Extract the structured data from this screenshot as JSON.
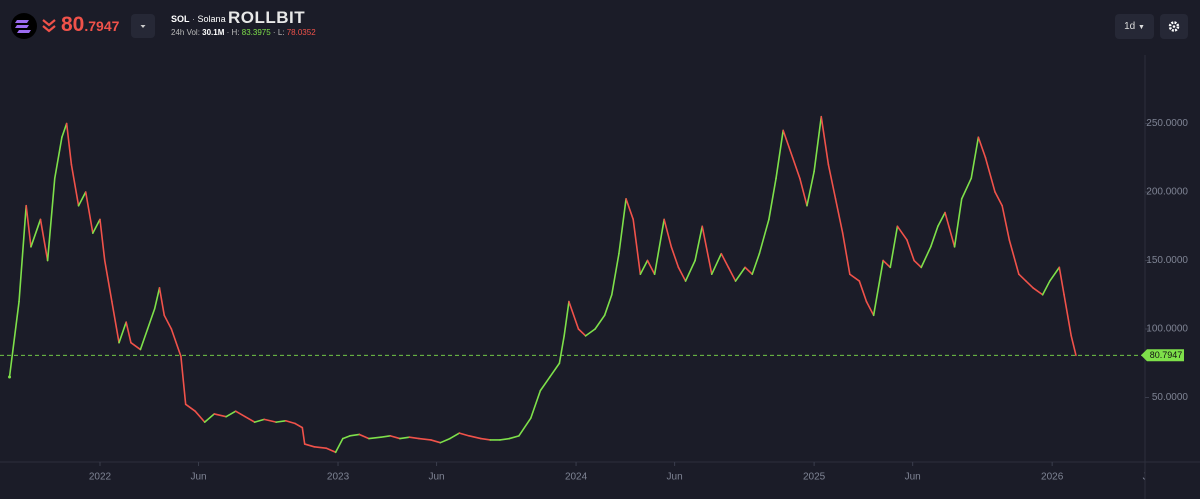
{
  "header": {
    "price_main": "80",
    "price_fraction": ".7947",
    "symbol": "SOL",
    "separator": "·",
    "name": "Solana",
    "brand": "ROLLBIT",
    "vol_label": "24h Vol:",
    "vol": "30.1M",
    "high_label": "H:",
    "high": "83.3975",
    "low_label": "L:",
    "low": "78.0352",
    "timeframe": "1d"
  },
  "chart_data": {
    "type": "line",
    "x": [
      2021.62,
      2021.66,
      2021.69,
      2021.71,
      2021.75,
      2021.78,
      2021.81,
      2021.84,
      2021.86,
      2021.88,
      2021.91,
      2021.94,
      2021.97,
      2022.0,
      2022.02,
      2022.05,
      2022.08,
      2022.11,
      2022.13,
      2022.17,
      2022.2,
      2022.23,
      2022.25,
      2022.27,
      2022.3,
      2022.34,
      2022.36,
      2022.4,
      2022.44,
      2022.48,
      2022.53,
      2022.57,
      2022.61,
      2022.65,
      2022.69,
      2022.74,
      2022.78,
      2022.82,
      2022.85,
      2022.86,
      2022.9,
      2022.95,
      2022.99,
      2023.02,
      2023.05,
      2023.09,
      2023.13,
      2023.18,
      2023.22,
      2023.26,
      2023.3,
      2023.34,
      2023.39,
      2023.43,
      2023.47,
      2023.51,
      2023.55,
      2023.6,
      2023.64,
      2023.68,
      2023.72,
      2023.76,
      2023.81,
      2023.85,
      2023.89,
      2023.93,
      2023.95,
      2023.97,
      2024.01,
      2024.04,
      2024.08,
      2024.12,
      2024.15,
      2024.18,
      2024.21,
      2024.24,
      2024.27,
      2024.3,
      2024.33,
      2024.37,
      2024.4,
      2024.43,
      2024.46,
      2024.5,
      2024.53,
      2024.57,
      2024.61,
      2024.64,
      2024.67,
      2024.71,
      2024.74,
      2024.77,
      2024.81,
      2024.84,
      2024.87,
      2024.91,
      2024.94,
      2024.97,
      2025.0,
      2025.03,
      2025.06,
      2025.09,
      2025.12,
      2025.15,
      2025.19,
      2025.22,
      2025.25,
      2025.29,
      2025.32,
      2025.35,
      2025.39,
      2025.42,
      2025.45,
      2025.49,
      2025.52,
      2025.55,
      2025.59,
      2025.62,
      2025.66,
      2025.69,
      2025.72,
      2025.76,
      2025.79,
      2025.82,
      2025.86,
      2025.89,
      2025.92,
      2025.96,
      2025.99,
      2026.03,
      2026.05,
      2026.08,
      2026.1
    ],
    "values": [
      65,
      120,
      190,
      160,
      180,
      150,
      210,
      240,
      250,
      220,
      190,
      200,
      170,
      180,
      150,
      120,
      90,
      105,
      90,
      85,
      100,
      115,
      130,
      110,
      100,
      80,
      45,
      40,
      32,
      38,
      36,
      40,
      36,
      32,
      34,
      32,
      33,
      31,
      28,
      16,
      14,
      13,
      10,
      20,
      22,
      23,
      20,
      21,
      22,
      20,
      21,
      20,
      19,
      17,
      20,
      24,
      22,
      20,
      19,
      19,
      20,
      22,
      35,
      55,
      65,
      75,
      95,
      120,
      100,
      95,
      100,
      110,
      125,
      155,
      195,
      180,
      140,
      150,
      140,
      180,
      160,
      145,
      135,
      150,
      175,
      140,
      155,
      145,
      135,
      145,
      140,
      155,
      180,
      210,
      245,
      225,
      210,
      190,
      215,
      255,
      220,
      195,
      170,
      140,
      135,
      120,
      110,
      150,
      145,
      175,
      165,
      150,
      145,
      160,
      175,
      185,
      160,
      195,
      210,
      240,
      225,
      200,
      190,
      165,
      140,
      135,
      130,
      125,
      135,
      145,
      125,
      95,
      80.7947
    ],
    "up_color": "#7ee04a",
    "down_color": "#f0524a",
    "current_price": 80.7947,
    "xlim": [
      2021.58,
      2026.39
    ],
    "xticks": [
      2022,
      {
        "value": 2022.414,
        "label": "Jun"
      },
      2023,
      {
        "value": 2023.414,
        "label": "Jun"
      },
      2024,
      {
        "value": 2024.414,
        "label": "Jun"
      },
      2025,
      {
        "value": 2025.414,
        "label": "Jun"
      },
      2026,
      {
        "value": 2026.414,
        "label": "Jun"
      }
    ],
    "ylim": [
      2.9,
      296.4
    ],
    "yticks": [
      {
        "value": 50,
        "label": "50.0000"
      },
      {
        "value": 100,
        "label": "100.0000"
      },
      {
        "value": 150,
        "label": "150.0000"
      },
      {
        "value": 200,
        "label": "200.0000"
      },
      {
        "value": 250,
        "label": "250.0000"
      }
    ]
  }
}
